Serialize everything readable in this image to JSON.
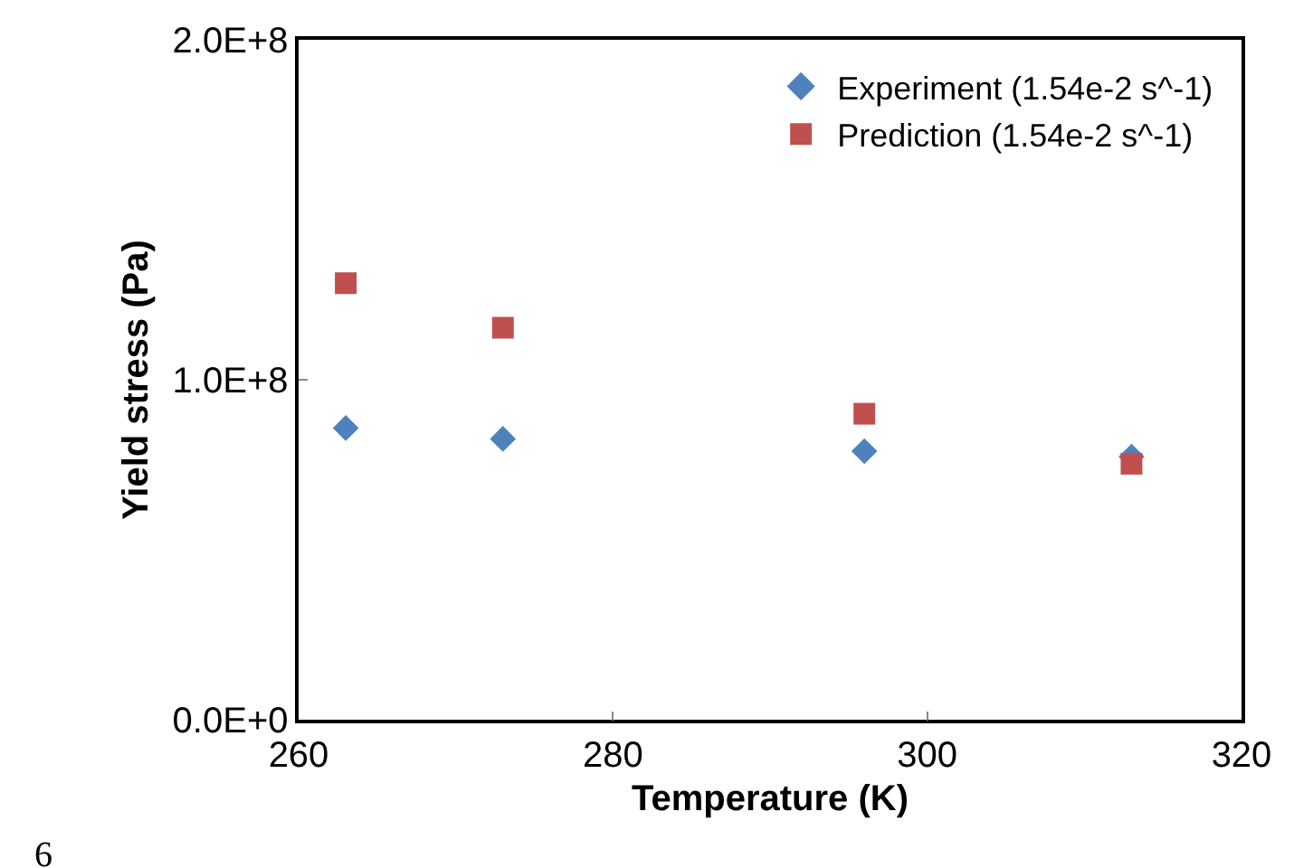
{
  "chart_data": {
    "type": "scatter",
    "xlabel": "Temperature (K)",
    "ylabel": "Yield stress (Pa)",
    "xlim": [
      260,
      320
    ],
    "xticks": [
      260,
      280,
      300,
      320
    ],
    "ylim": [
      0,
      200000000
    ],
    "yticks": [
      {
        "value": 0,
        "label": "0.0E+0"
      },
      {
        "value": 100000000,
        "label": "1.0E+8"
      },
      {
        "value": 200000000,
        "label": "2.0E+8"
      }
    ],
    "legend": "top right",
    "series": [
      {
        "name": "Experiment (1.54e-2 s^-1)",
        "color": "#4f81bd",
        "marker": "diamond",
        "x": [
          263,
          273,
          296,
          313
        ],
        "values": [
          85800000,
          82600000,
          79000000,
          77400000
        ]
      },
      {
        "name": "Prediction (1.54e-2 s^-1)",
        "color": "#c0504d",
        "marker": "square",
        "x": [
          263,
          273,
          296,
          313
        ],
        "values": [
          128400000,
          115300000,
          90000000,
          75300000
        ]
      }
    ],
    "annotations": [
      "6"
    ]
  }
}
